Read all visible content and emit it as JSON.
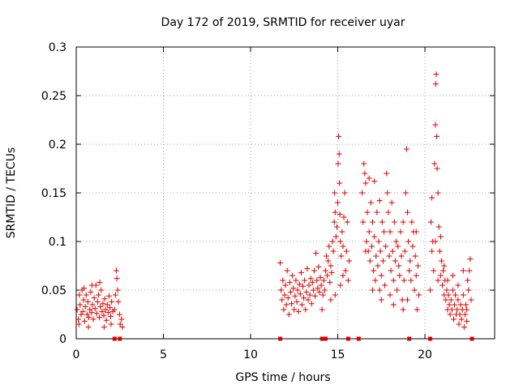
{
  "chart_data": {
    "type": "scatter",
    "title": "Day 172 of 2019, SRMTID for receiver uyar",
    "xlabel": "GPS time / hours",
    "ylabel": "SRMTID / TECUs",
    "xlim": [
      0,
      24
    ],
    "ylim": [
      0,
      0.3
    ],
    "grid": true,
    "marker": "+",
    "color": "#dd0000",
    "x_ticks": [
      {
        "value": 0,
        "label": "0"
      },
      {
        "value": 5,
        "label": "5"
      },
      {
        "value": 10,
        "label": "10"
      },
      {
        "value": 15,
        "label": "15"
      },
      {
        "value": 20,
        "label": "20"
      }
    ],
    "y_ticks": [
      {
        "value": 0,
        "label": "0"
      },
      {
        "value": 0.05,
        "label": "0.05"
      },
      {
        "value": 0.1,
        "label": "0.1"
      },
      {
        "value": 0.15,
        "label": "0.15"
      },
      {
        "value": 0.2,
        "label": "0.2"
      },
      {
        "value": 0.25,
        "label": "0.25"
      },
      {
        "value": 0.3,
        "label": "0.3"
      }
    ],
    "points": [
      [
        0.05,
        0.03
      ],
      [
        0.12,
        0.02
      ],
      [
        0.18,
        0.045
      ],
      [
        0.22,
        0.035
      ],
      [
        0.28,
        0.025
      ],
      [
        0.33,
        0.05
      ],
      [
        0.38,
        0.028
      ],
      [
        0.42,
        0.04
      ],
      [
        0.48,
        0.018
      ],
      [
        0.52,
        0.033
      ],
      [
        0.57,
        0.045
      ],
      [
        0.62,
        0.025
      ],
      [
        0.67,
        0.038
      ],
      [
        0.72,
        0.022
      ],
      [
        0.78,
        0.03
      ],
      [
        0.83,
        0.048
      ],
      [
        0.88,
        0.027
      ],
      [
        0.93,
        0.035
      ],
      [
        0.98,
        0.02
      ],
      [
        1.03,
        0.042
      ],
      [
        1.08,
        0.031
      ],
      [
        1.13,
        0.055
      ],
      [
        1.18,
        0.026
      ],
      [
        1.23,
        0.038
      ],
      [
        1.28,
        0.045
      ],
      [
        1.33,
        0.022
      ],
      [
        1.38,
        0.033
      ],
      [
        1.43,
        0.05
      ],
      [
        1.48,
        0.028
      ],
      [
        1.53,
        0.036
      ],
      [
        1.58,
        0.024
      ],
      [
        1.63,
        0.041
      ],
      [
        1.68,
        0.03
      ],
      [
        1.73,
        0.019
      ],
      [
        1.78,
        0.035
      ],
      [
        1.83,
        0.027
      ],
      [
        1.88,
        0.044
      ],
      [
        1.93,
        0.032
      ],
      [
        1.98,
        0.023
      ],
      [
        2.03,
        0.038
      ],
      [
        2.1,
        0.028
      ],
      [
        2.2,
        0.03
      ],
      [
        2.25,
        0.045
      ],
      [
        2.3,
        0.07
      ],
      [
        2.33,
        0.062
      ],
      [
        2.38,
        0.05
      ],
      [
        2.42,
        0.038
      ],
      [
        2.48,
        0.025
      ],
      [
        2.52,
        0.015
      ],
      [
        2.6,
        0.02
      ],
      [
        2.65,
        0.012
      ],
      [
        0.9,
        0.055
      ],
      [
        1.35,
        0.058
      ],
      [
        0.45,
        0.052
      ],
      [
        0.15,
        0.015
      ],
      [
        1.6,
        0.012
      ],
      [
        2.0,
        0.015
      ],
      [
        0.7,
        0.012
      ],
      [
        11.7,
        0.078
      ],
      [
        11.75,
        0.05
      ],
      [
        11.8,
        0.04
      ],
      [
        11.85,
        0.06
      ],
      [
        11.9,
        0.03
      ],
      [
        11.95,
        0.045
      ],
      [
        12.0,
        0.055
      ],
      [
        12.05,
        0.035
      ],
      [
        12.1,
        0.07
      ],
      [
        12.15,
        0.042
      ],
      [
        12.2,
        0.025
      ],
      [
        12.25,
        0.058
      ],
      [
        12.3,
        0.048
      ],
      [
        12.35,
        0.036
      ],
      [
        12.4,
        0.065
      ],
      [
        12.45,
        0.052
      ],
      [
        12.5,
        0.03
      ],
      [
        12.55,
        0.044
      ],
      [
        12.6,
        0.06
      ],
      [
        12.65,
        0.038
      ],
      [
        12.7,
        0.05
      ],
      [
        12.75,
        0.028
      ],
      [
        12.8,
        0.056
      ],
      [
        12.85,
        0.046
      ],
      [
        12.9,
        0.068
      ],
      [
        12.95,
        0.035
      ],
      [
        13.0,
        0.054
      ],
      [
        13.05,
        0.042
      ],
      [
        13.1,
        0.06
      ],
      [
        13.15,
        0.03
      ],
      [
        13.2,
        0.048
      ],
      [
        13.25,
        0.072
      ],
      [
        13.3,
        0.04
      ],
      [
        13.35,
        0.055
      ],
      [
        13.4,
        0.045
      ],
      [
        13.45,
        0.062
      ],
      [
        13.5,
        0.036
      ],
      [
        13.55,
        0.058
      ],
      [
        13.6,
        0.05
      ],
      [
        13.65,
        0.07
      ],
      [
        13.7,
        0.044
      ],
      [
        13.75,
        0.088
      ],
      [
        13.8,
        0.06
      ],
      [
        13.85,
        0.052
      ],
      [
        13.9,
        0.074
      ],
      [
        13.95,
        0.048
      ],
      [
        14.0,
        0.063
      ],
      [
        14.05,
        0.055
      ],
      [
        14.1,
        0.03
      ],
      [
        14.15,
        0.045
      ],
      [
        14.2,
        0.06
      ],
      [
        14.25,
        0.05
      ],
      [
        14.3,
        0.07
      ],
      [
        14.35,
        0.085
      ],
      [
        14.4,
        0.065
      ],
      [
        14.45,
        0.08
      ],
      [
        14.5,
        0.095
      ],
      [
        14.55,
        0.058
      ],
      [
        14.6,
        0.075
      ],
      [
        14.65,
        0.068
      ],
      [
        14.7,
        0.1
      ],
      [
        14.75,
        0.09
      ],
      [
        14.8,
        0.12
      ],
      [
        14.82,
        0.15
      ],
      [
        14.85,
        0.13
      ],
      [
        14.9,
        0.105
      ],
      [
        14.95,
        0.115
      ],
      [
        15.0,
        0.14
      ],
      [
        15.02,
        0.18
      ],
      [
        15.05,
        0.208
      ],
      [
        15.08,
        0.19
      ],
      [
        15.1,
        0.16
      ],
      [
        15.12,
        0.128
      ],
      [
        15.15,
        0.1
      ],
      [
        15.2,
        0.085
      ],
      [
        15.25,
        0.11
      ],
      [
        15.3,
        0.095
      ],
      [
        15.35,
        0.125
      ],
      [
        15.4,
        0.15
      ],
      [
        15.45,
        0.07
      ],
      [
        15.5,
        0.09
      ],
      [
        15.55,
        0.12
      ],
      [
        15.6,
        0.06
      ],
      [
        15.65,
        0.08
      ],
      [
        14.85,
        0.045
      ],
      [
        15.15,
        0.055
      ],
      [
        15.3,
        0.065
      ],
      [
        14.6,
        0.04
      ],
      [
        16.4,
        0.15
      ],
      [
        16.45,
        0.12
      ],
      [
        16.5,
        0.18
      ],
      [
        16.55,
        0.17
      ],
      [
        16.6,
        0.16
      ],
      [
        16.65,
        0.1
      ],
      [
        16.7,
        0.13
      ],
      [
        16.75,
        0.09
      ],
      [
        16.8,
        0.11
      ],
      [
        16.85,
        0.08
      ],
      [
        16.9,
        0.14
      ],
      [
        16.95,
        0.095
      ],
      [
        17.0,
        0.12
      ],
      [
        17.05,
        0.07
      ],
      [
        17.1,
        0.105
      ],
      [
        17.15,
        0.06
      ],
      [
        17.2,
        0.085
      ],
      [
        17.25,
        0.13
      ],
      [
        17.3,
        0.075
      ],
      [
        17.35,
        0.1
      ],
      [
        17.4,
        0.05
      ],
      [
        17.45,
        0.09
      ],
      [
        17.5,
        0.065
      ],
      [
        17.55,
        0.12
      ],
      [
        17.6,
        0.08
      ],
      [
        17.65,
        0.11
      ],
      [
        17.7,
        0.055
      ],
      [
        17.75,
        0.095
      ],
      [
        17.8,
        0.17
      ],
      [
        17.85,
        0.15
      ],
      [
        17.9,
        0.13
      ],
      [
        17.95,
        0.085
      ],
      [
        18.0,
        0.11
      ],
      [
        18.05,
        0.07
      ],
      [
        18.1,
        0.14
      ],
      [
        18.15,
        0.09
      ],
      [
        18.2,
        0.06
      ],
      [
        18.25,
        0.12
      ],
      [
        18.3,
        0.08
      ],
      [
        18.35,
        0.1
      ],
      [
        18.4,
        0.05
      ],
      [
        18.45,
        0.095
      ],
      [
        18.5,
        0.075
      ],
      [
        18.55,
        0.065
      ],
      [
        18.6,
        0.11
      ],
      [
        18.65,
        0.085
      ],
      [
        18.7,
        0.04
      ],
      [
        18.75,
        0.12
      ],
      [
        18.8,
        0.06
      ],
      [
        18.85,
        0.09
      ],
      [
        18.9,
        0.15
      ],
      [
        18.95,
        0.195
      ],
      [
        19.0,
        0.13
      ],
      [
        19.05,
        0.1
      ],
      [
        19.1,
        0.07
      ],
      [
        19.15,
        0.08
      ],
      [
        19.2,
        0.06
      ],
      [
        19.25,
        0.12
      ],
      [
        19.3,
        0.095
      ],
      [
        19.35,
        0.11
      ],
      [
        19.4,
        0.05
      ],
      [
        19.45,
        0.085
      ],
      [
        19.5,
        0.065
      ],
      [
        19.55,
        0.03
      ],
      [
        19.6,
        0.075
      ],
      [
        19.65,
        0.045
      ],
      [
        16.6,
        0.09
      ],
      [
        17.0,
        0.05
      ],
      [
        17.5,
        0.04
      ],
      [
        18.0,
        0.045
      ],
      [
        18.2,
        0.035
      ],
      [
        16.8,
        0.165
      ],
      [
        17.4,
        0.142
      ],
      [
        17.1,
        0.162
      ],
      [
        18.75,
        0.03
      ],
      [
        19.0,
        0.04
      ],
      [
        19.5,
        0.11
      ],
      [
        20.3,
        0.05
      ],
      [
        20.35,
        0.12
      ],
      [
        20.4,
        0.145
      ],
      [
        20.45,
        0.1
      ],
      [
        20.5,
        0.07
      ],
      [
        20.55,
        0.18
      ],
      [
        20.6,
        0.22
      ],
      [
        20.62,
        0.262
      ],
      [
        20.65,
        0.272
      ],
      [
        20.68,
        0.208
      ],
      [
        20.7,
        0.175
      ],
      [
        20.75,
        0.15
      ],
      [
        20.8,
        0.115
      ],
      [
        20.85,
        0.09
      ],
      [
        20.9,
        0.065
      ],
      [
        20.95,
        0.08
      ],
      [
        21.0,
        0.055
      ],
      [
        21.05,
        0.07
      ],
      [
        21.1,
        0.045
      ],
      [
        21.15,
        0.06
      ],
      [
        21.2,
        0.04
      ],
      [
        21.25,
        0.05
      ],
      [
        21.3,
        0.03
      ],
      [
        21.35,
        0.045
      ],
      [
        21.4,
        0.035
      ],
      [
        21.45,
        0.025
      ],
      [
        21.5,
        0.04
      ],
      [
        21.55,
        0.03
      ],
      [
        21.6,
        0.05
      ],
      [
        21.65,
        0.02
      ],
      [
        21.7,
        0.035
      ],
      [
        21.75,
        0.045
      ],
      [
        21.8,
        0.025
      ],
      [
        21.85,
        0.03
      ],
      [
        21.9,
        0.04
      ],
      [
        21.95,
        0.015
      ],
      [
        22.0,
        0.025
      ],
      [
        22.05,
        0.035
      ],
      [
        22.1,
        0.02
      ],
      [
        22.15,
        0.03
      ],
      [
        22.2,
        0.045
      ],
      [
        22.25,
        0.012
      ],
      [
        22.3,
        0.025
      ],
      [
        22.35,
        0.035
      ],
      [
        22.4,
        0.03
      ],
      [
        22.45,
        0.06
      ],
      [
        22.5,
        0.05
      ],
      [
        22.55,
        0.07
      ],
      [
        22.6,
        0.082
      ],
      [
        22.65,
        0.04
      ],
      [
        20.4,
        0.09
      ],
      [
        20.6,
        0.1
      ],
      [
        20.75,
        0.06
      ],
      [
        20.9,
        0.105
      ],
      [
        21.1,
        0.075
      ],
      [
        21.3,
        0.06
      ],
      [
        21.6,
        0.065
      ],
      [
        21.9,
        0.055
      ],
      [
        22.2,
        0.07
      ],
      [
        22.4,
        0.018
      ]
    ],
    "axis_markers_x": [
      2.2,
      2.5,
      11.7,
      14.1,
      14.3,
      15.6,
      16.2,
      19.1,
      20.3,
      22.7
    ]
  }
}
